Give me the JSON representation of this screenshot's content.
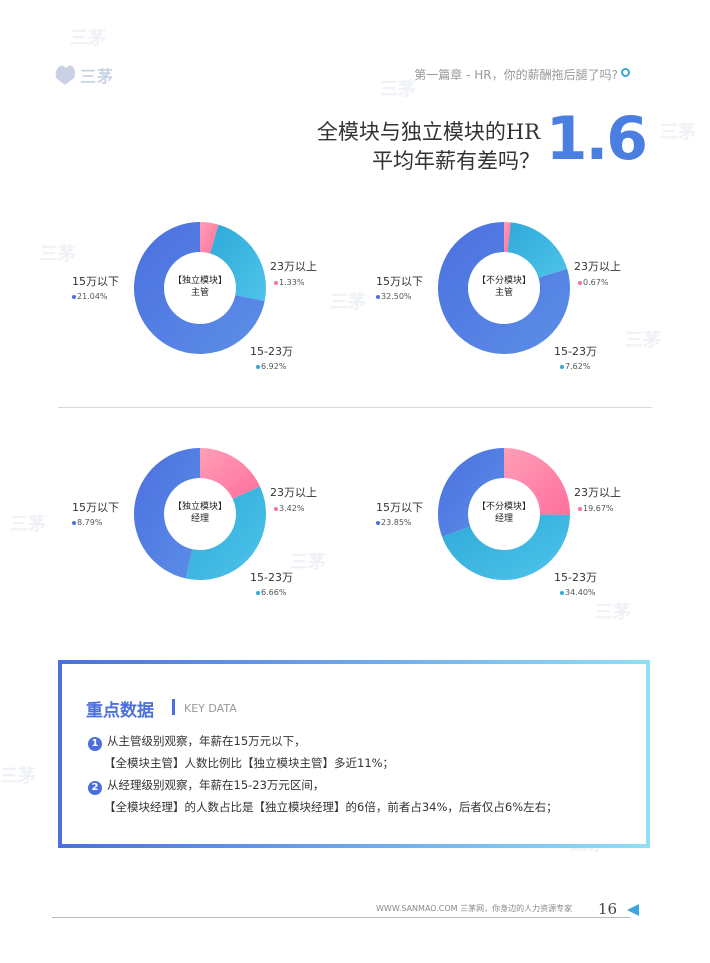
{
  "header": {
    "logo_text": "三茅",
    "chapter": "第一篇章 - HR，你的薪酬拖后腿了吗?"
  },
  "title": {
    "line1": "全模块与独立模块的HR",
    "line2": "平均年薪有差吗？",
    "number": "1.6"
  },
  "colors": {
    "blue": "#4c6fe0",
    "cyan": "#2ea9d8",
    "pink": "#ff6f9c"
  },
  "chart_data": [
    {
      "type": "pie",
      "center_label": [
        "【独立模块】",
        "主管"
      ],
      "categories": [
        "23万以上",
        "15-23万",
        "15万以下"
      ],
      "values_display": [
        "1.33%",
        "6.92%",
        "21.04%"
      ],
      "values": [
        1.33,
        6.92,
        21.04
      ]
    },
    {
      "type": "pie",
      "center_label": [
        "【不分模块】",
        "主管"
      ],
      "categories": [
        "23万以上",
        "15-23万",
        "15万以下"
      ],
      "values_display": [
        "0.67%",
        "7.62%",
        "32.50%"
      ],
      "values": [
        0.67,
        7.62,
        32.5
      ]
    },
    {
      "type": "pie",
      "center_label": [
        "【独立模块】",
        "经理"
      ],
      "categories": [
        "23万以上",
        "15-23万",
        "15万以下"
      ],
      "values_display": [
        "3.42%",
        "6.66%",
        "8.79%"
      ],
      "values": [
        3.42,
        6.66,
        8.79
      ]
    },
    {
      "type": "pie",
      "center_label": [
        "【不分模块】",
        "经理"
      ],
      "categories": [
        "23万以上",
        "15-23万",
        "15万以下"
      ],
      "values_display": [
        "19.67%",
        "34.40%",
        "23.85%"
      ],
      "values": [
        19.67,
        34.4,
        23.85
      ]
    }
  ],
  "key_data": {
    "title": "重点数据",
    "subtitle": "KEY DATA",
    "points": [
      {
        "num": "1",
        "line1": "从主管级别观察，年薪在15万元以下，",
        "line2": "【全模块主管】人数比例比【独立模块主管】多近11%；"
      },
      {
        "num": "2",
        "line1": "从经理级别观察，年薪在15-23万元区间，",
        "line2": "【全模块经理】的人数占比是【独立模块经理】的6倍，前者占34%，后者仅占6%左右；"
      }
    ]
  },
  "footer": {
    "text": "WWW.SANMAO.COM    三茅网，你身边的人力资源专家",
    "page": "16"
  }
}
